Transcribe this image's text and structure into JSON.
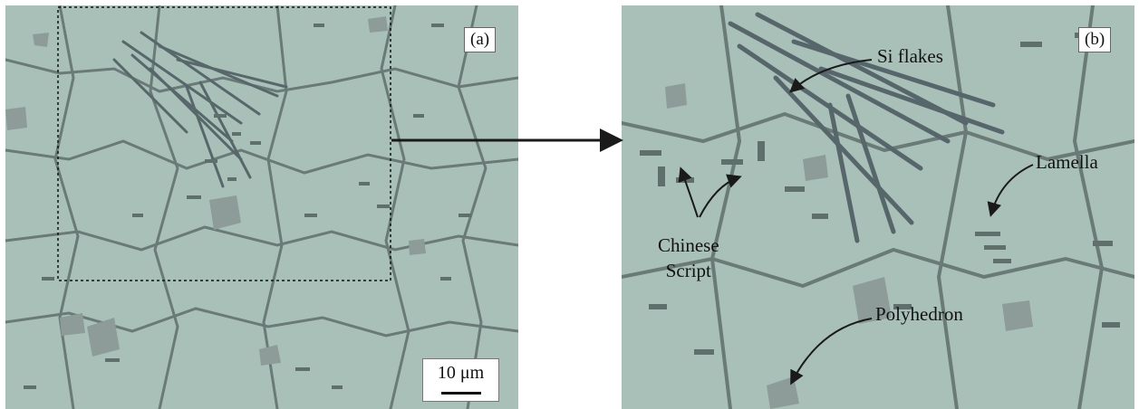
{
  "panels": {
    "a": {
      "label": "(a)",
      "scale_bar": "10 μm"
    },
    "b": {
      "label": "(b)"
    }
  },
  "annotations": {
    "si_flakes": "Si flakes",
    "lamella": "Lamella",
    "chinese_line1": "Chinese",
    "chinese_line2": "Script",
    "polyhedron": "Polyhedron"
  },
  "colors": {
    "matrix": "#a9c0b9",
    "eutectic_dark": "#5f6f6c",
    "phase_mid": "#8d9c98",
    "arrow": "#1a1a1a"
  }
}
